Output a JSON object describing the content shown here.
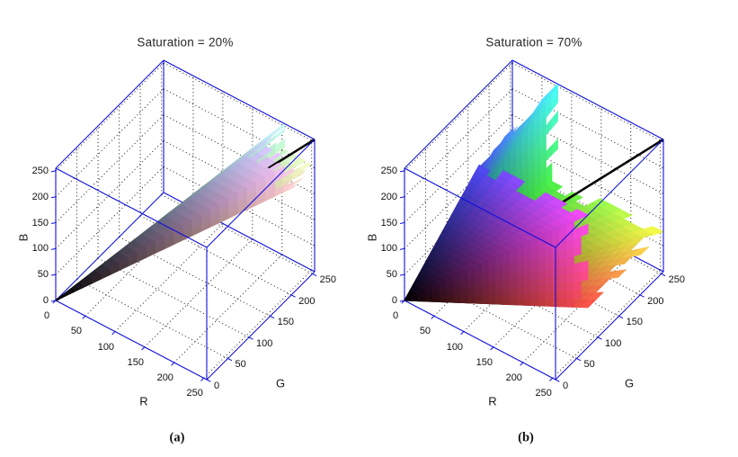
{
  "figure": {
    "background": "#ffffff"
  },
  "style_colors": {
    "box_line": "#0e0edd",
    "grid_dots": "#1a1a1a",
    "diagonal_line": "#000000",
    "text": "#1a1a1a"
  },
  "chart_data": [
    {
      "type": "surface3d",
      "title": "Saturation = 20%",
      "caption": "(a)",
      "saturation_percent": 20,
      "surface": "hsv_constant_saturation_cone_colored_by_rgb",
      "axes": {
        "x": {
          "label": "R",
          "min": 0,
          "max": 255,
          "ticks": [
            0,
            50,
            100,
            150,
            200,
            250
          ]
        },
        "y": {
          "label": "G",
          "min": 0,
          "max": 255,
          "ticks": [
            0,
            50,
            100,
            150,
            200,
            250
          ]
        },
        "z": {
          "label": "B",
          "min": 0,
          "max": 255,
          "ticks": [
            0,
            50,
            100,
            150,
            200,
            250
          ]
        }
      },
      "diagonal_line": {
        "from": [
          0,
          0,
          0
        ],
        "to": [
          255,
          255,
          255
        ]
      },
      "grid": true,
      "legend": "none"
    },
    {
      "type": "surface3d",
      "title": "Saturation = 70%",
      "caption": "(b)",
      "saturation_percent": 70,
      "surface": "hsv_constant_saturation_cone_colored_by_rgb",
      "axes": {
        "x": {
          "label": "R",
          "min": 0,
          "max": 255,
          "ticks": [
            0,
            50,
            100,
            150,
            200,
            250
          ]
        },
        "y": {
          "label": "G",
          "min": 0,
          "max": 255,
          "ticks": [
            0,
            50,
            100,
            150,
            200,
            250
          ]
        },
        "z": {
          "label": "B",
          "min": 0,
          "max": 255,
          "ticks": [
            0,
            50,
            100,
            150,
            200,
            250
          ]
        }
      },
      "diagonal_line": {
        "from": [
          0,
          0,
          0
        ],
        "to": [
          255,
          255,
          255
        ]
      },
      "grid": true,
      "legend": "none"
    }
  ]
}
